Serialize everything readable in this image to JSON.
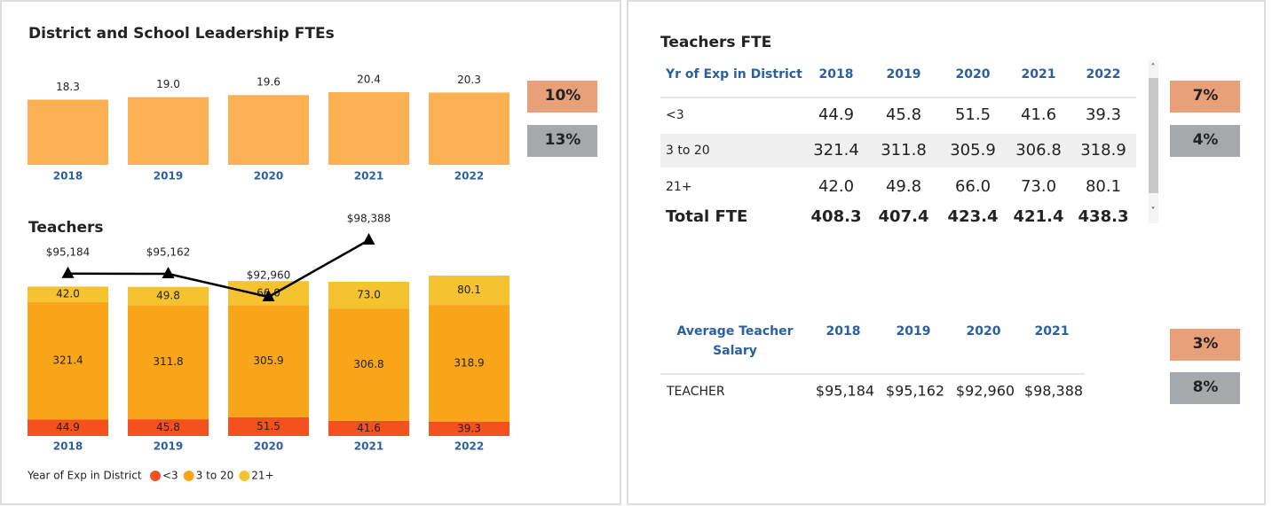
{
  "chart_data": [
    {
      "type": "bar",
      "title": "District and School Leadership FTEs",
      "categories": [
        "2018",
        "2019",
        "2020",
        "2021",
        "2022"
      ],
      "values": [
        18.3,
        19.0,
        19.6,
        20.4,
        20.3
      ],
      "value_labels": [
        "18.3",
        "19.0",
        "19.6",
        "20.4",
        "20.3"
      ],
      "color": "#fdb155"
    },
    {
      "type": "stacked_bar_line",
      "title": "Teachers",
      "categories": [
        "2018",
        "2019",
        "2020",
        "2021",
        "2022"
      ],
      "legend_title": "Year of Exp in District",
      "series": [
        {
          "name": "<3",
          "color": "#f4511e",
          "values": [
            44.9,
            45.8,
            51.5,
            41.6,
            39.3
          ],
          "value_labels": [
            "44.9",
            "45.8",
            "51.5",
            "41.6",
            "39.3"
          ]
        },
        {
          "name": "3 to 20",
          "color": "#f9a51a",
          "values": [
            321.4,
            311.8,
            305.9,
            306.8,
            318.9
          ],
          "value_labels": [
            "321.4",
            "311.8",
            "305.9",
            "306.8",
            "318.9"
          ]
        },
        {
          "name": "21+",
          "color": "#f5c330",
          "values": [
            42.0,
            49.8,
            66.0,
            73.0,
            80.1
          ],
          "value_labels": [
            "42.0",
            "49.8",
            "66.0",
            "73.0",
            "80.1"
          ]
        }
      ],
      "line": {
        "color": "#000000",
        "values": [
          95184,
          95162,
          92960,
          98388,
          null
        ],
        "value_labels": [
          "$95,184",
          "$95,162",
          "$92,960",
          "$98,388",
          null
        ]
      }
    }
  ],
  "left_badges": [
    {
      "label": "10%",
      "color": "#e8a07a"
    },
    {
      "label": "13%",
      "color": "#a6a9ab"
    }
  ],
  "fte_table": {
    "title": "Teachers FTE",
    "columns": [
      "Yr of Exp in District",
      "2018",
      "2019",
      "2020",
      "2021",
      "2022"
    ],
    "rows": [
      [
        "<3",
        "44.9",
        "45.8",
        "51.5",
        "41.6",
        "39.3"
      ],
      [
        "3 to 20",
        "321.4",
        "311.8",
        "305.9",
        "306.8",
        "318.9"
      ],
      [
        "21+",
        "42.0",
        "49.8",
        "66.0",
        "73.0",
        "80.1"
      ]
    ],
    "total": [
      "Total FTE",
      "408.3",
      "407.4",
      "423.4",
      "421.4",
      "438.3"
    ]
  },
  "fte_badges": [
    {
      "label": "7%",
      "color": "#e8a07a"
    },
    {
      "label": "4%",
      "color": "#a6a9ab"
    }
  ],
  "salary_table": {
    "columns": [
      "Average Teacher Salary",
      "2018",
      "2019",
      "2020",
      "2021"
    ],
    "rows": [
      [
        "TEACHER",
        "$95,184",
        "$95,162",
        "$92,960",
        "$98,388"
      ]
    ]
  },
  "salary_badges": [
    {
      "label": "3%",
      "color": "#e8a07a"
    },
    {
      "label": "8%",
      "color": "#a6a9ab"
    }
  ]
}
